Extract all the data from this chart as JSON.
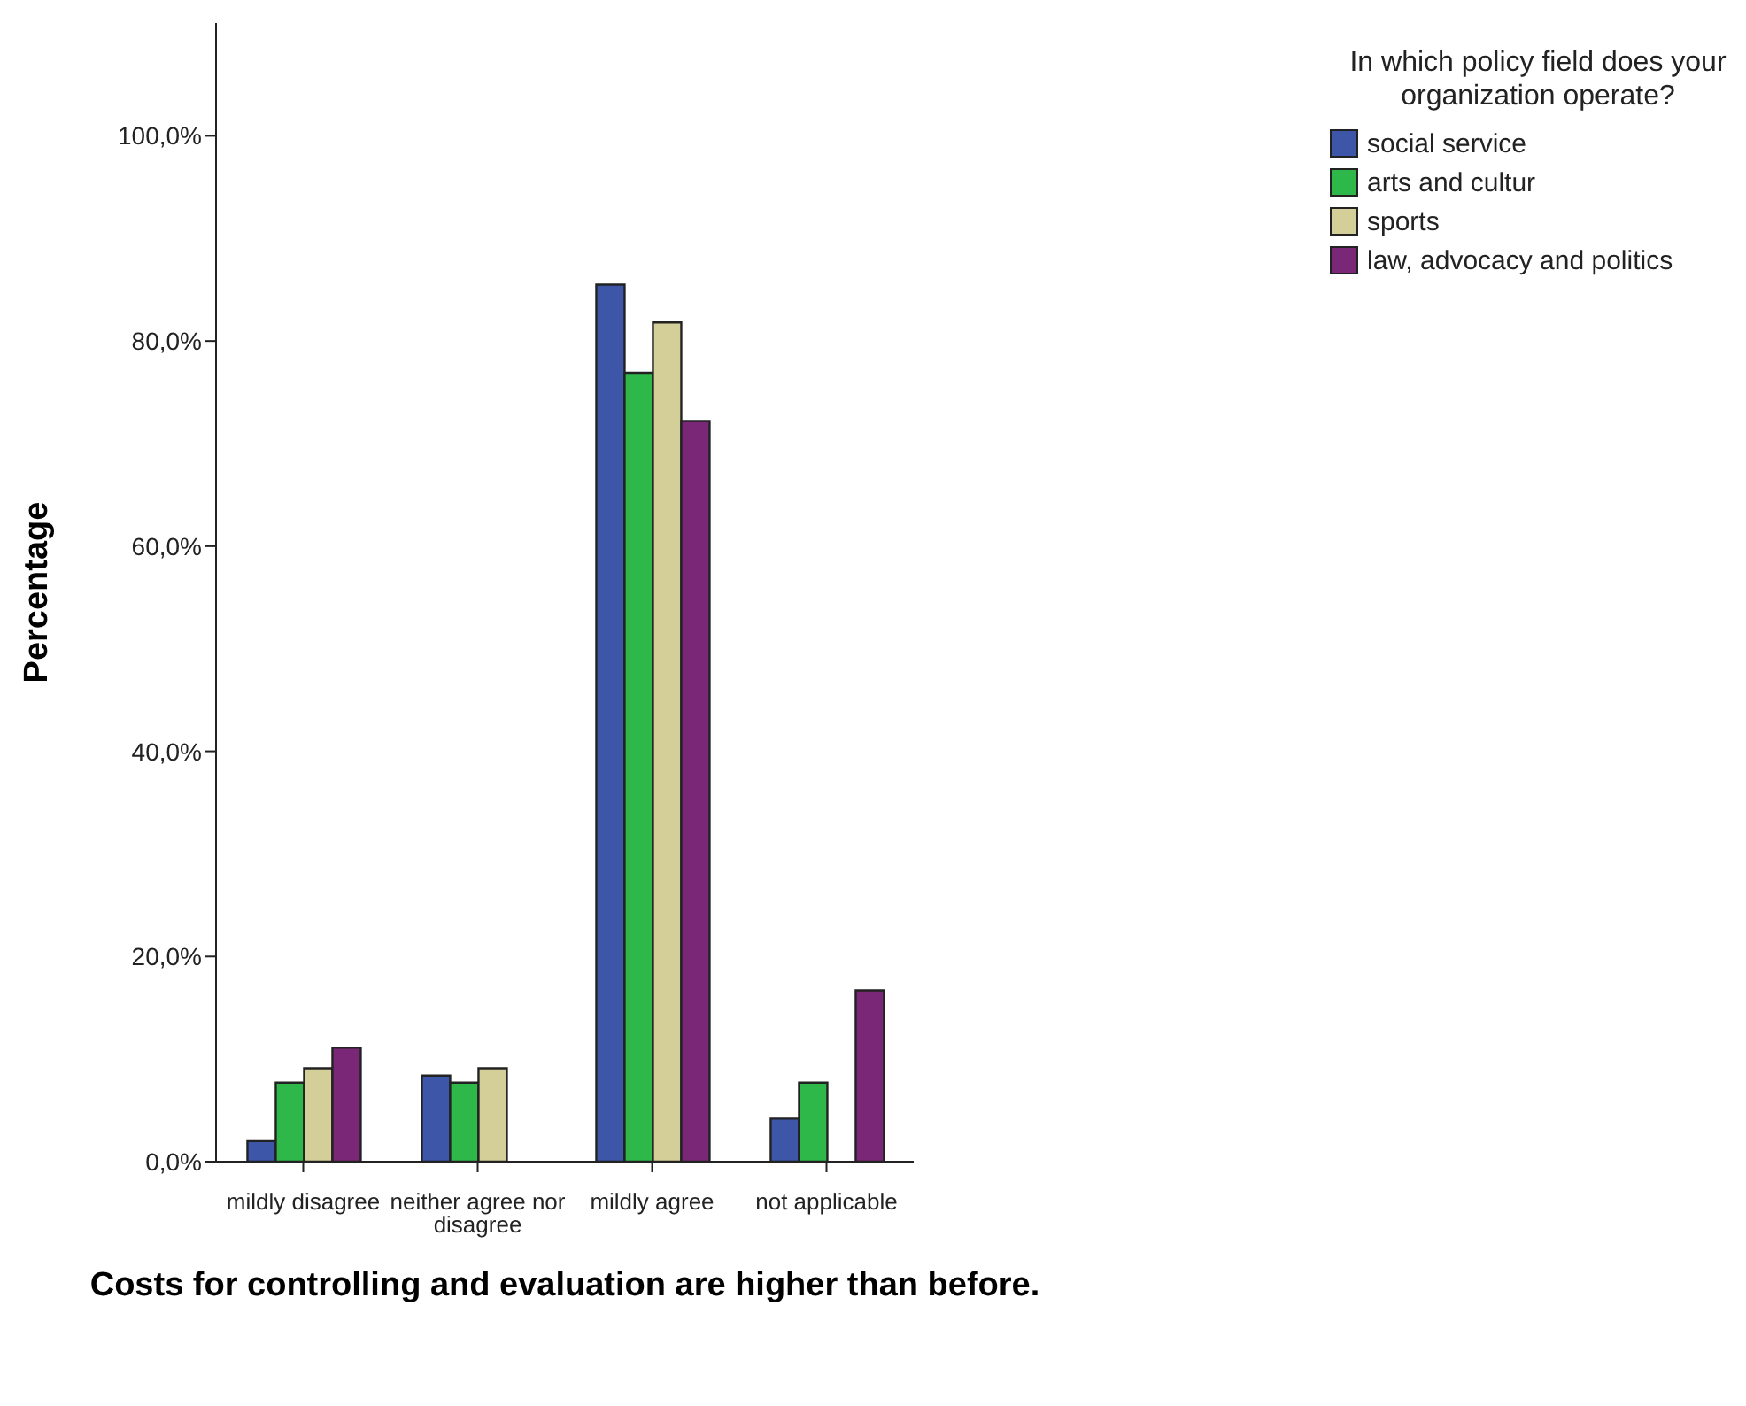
{
  "chart_data": {
    "type": "bar",
    "xlabel": "Costs for controlling and evaluation are higher than before.",
    "ylabel": "Percentage",
    "legend_title": "In which policy field does your organization operate?",
    "categories": [
      "mildly disagree",
      "neither agree nor disagree",
      "mildly agree",
      "not applicable"
    ],
    "series": [
      {
        "name": "social service",
        "color": "#3d56a8",
        "values": [
          2.0,
          8.4,
          85.5,
          4.2
        ]
      },
      {
        "name": "arts and cultur",
        "color": "#2fb84a",
        "values": [
          7.7,
          7.7,
          76.9,
          7.7
        ]
      },
      {
        "name": "sports",
        "color": "#d4cf98",
        "values": [
          9.1,
          9.1,
          81.8,
          0
        ]
      },
      {
        "name": "law, advocacy and politics",
        "color": "#7b2777",
        "values": [
          11.1,
          0,
          72.2,
          16.7
        ]
      }
    ],
    "ylim": [
      0,
      111
    ],
    "yticks": [
      {
        "value": 0,
        "label": "0,0%"
      },
      {
        "value": 20,
        "label": "20,0%"
      },
      {
        "value": 40,
        "label": "40,0%"
      },
      {
        "value": 60,
        "label": "60,0%"
      },
      {
        "value": 80,
        "label": "80,0%"
      },
      {
        "value": 100,
        "label": "100,0%"
      }
    ],
    "grid": false,
    "legend": "top right"
  }
}
